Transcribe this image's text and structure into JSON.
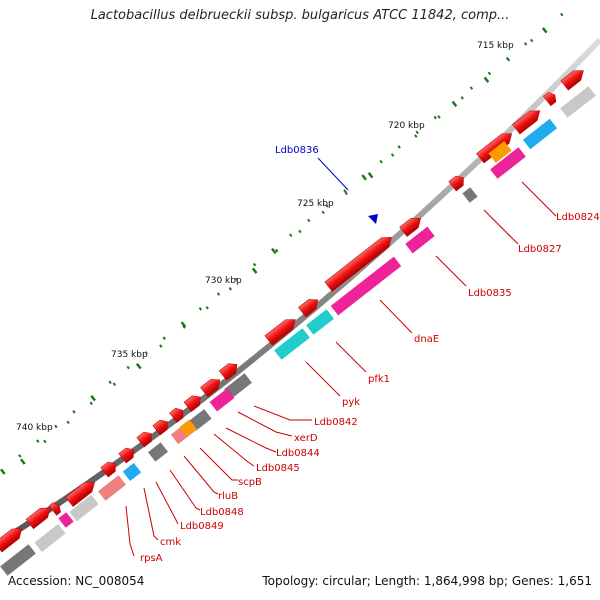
{
  "title": "Lactobacillus delbrueckii subsp. bulgaricus ATCC 11842, comp...",
  "footer": {
    "accession": "Accession: NC_008054",
    "summary": "Topology: circular; Length: 1,864,998 bp; Genes: 1,651"
  },
  "ticks": [
    "715 kbp",
    "720 kbp",
    "725 kbp",
    "730 kbp",
    "735 kbp",
    "740 kbp"
  ],
  "highlight": {
    "label": "Ldb0836",
    "color": "#0000cc"
  },
  "gene_labels": [
    "Ldb0824",
    "Ldb0827",
    "Ldb0835",
    "dnaE",
    "pfk1",
    "pyk",
    "Ldb0842",
    "xerD",
    "Ldb0844",
    "Ldb0845",
    "scpB",
    "rluB",
    "Ldb0848",
    "Ldb0849",
    "cmk",
    "rpsA"
  ],
  "colors": {
    "gene_red": "#ee1111",
    "label_red": "#cc0000",
    "tick_green": "#1a7a1a",
    "backbone": "#888888",
    "cyan": "#22cccc",
    "magenta": "#ee2299",
    "gray": "#777777",
    "light_gray": "#c8c8c8",
    "pink": "#f08080",
    "orange": "#ff9900",
    "blue": "#22aaee"
  }
}
